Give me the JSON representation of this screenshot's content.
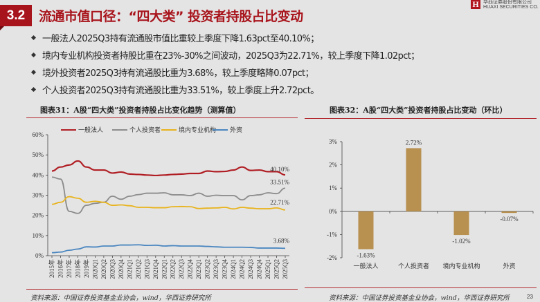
{
  "header": {
    "section_number": "3.2",
    "title": "流通市值口径：“四大类” 投资者持股占比变动",
    "logo_text_cn": "华西证券股份有限公司",
    "logo_text_en": "HUAXI SECURITIES CO.",
    "logo_mark": "H"
  },
  "bullets": [
    "一般法人2025Q3持有流通股市值比重较上季度下降1.63pct至40.10%；",
    "境内专业机构投资者持股比重在23%-30%之间波动，2025Q3为22.71%，较上季度下降1.02pct；",
    "境外投资者2025Q3持有流通股比重为3.68%，较上季度略降0.07pct；",
    "个人投资者2025Q3持有流通股比重为33.51%，较上季度上升2.72pct。"
  ],
  "colors": {
    "accent": "#a8141c",
    "general_legal": "#b01e24",
    "individual": "#8c8c8c",
    "domestic_inst": "#e8b31c",
    "foreign": "#4a86c0",
    "bar": "#b8904f"
  },
  "chart_data": [
    {
      "type": "line",
      "title": "图表31：A股“四大类”投资者持股占比变化趋势（测算值）",
      "source": "资料来源：中国证券投资基金业协会，wind，华西证券研究所",
      "ylim": [
        0,
        60
      ],
      "yticks": [
        "0%",
        "10%",
        "20%",
        "30%",
        "40%",
        "50%",
        "60%"
      ],
      "categories": [
        "2015年",
        "2016年",
        "2017年",
        "2018年",
        "2019年",
        "2020Q1",
        "2020Q2",
        "2020Q3",
        "2020Q4",
        "2021Q1",
        "2021Q2",
        "2021Q3",
        "2021Q4",
        "2022Q1",
        "2022Q2",
        "2022Q3",
        "2022Q4",
        "2023Q1",
        "2023Q2",
        "2023Q3",
        "2023Q4",
        "2024Q1",
        "2024Q2",
        "2024Q3",
        "2024Q4",
        "2025Q1",
        "2025Q2",
        "2025Q3"
      ],
      "legend_position": "top",
      "series": [
        {
          "name": "一般法人",
          "color": "#b01e24",
          "end_label": "40.10%",
          "values": [
            42,
            44,
            45,
            47,
            44,
            42.5,
            42.5,
            41,
            41.5,
            40.5,
            40.3,
            40,
            39.8,
            40,
            40.3,
            40.5,
            40.8,
            40.8,
            42,
            41.7,
            41.8,
            42.5,
            44,
            42.3,
            42.5,
            41.7,
            41.7,
            40.1
          ]
        },
        {
          "name": "个人投资者",
          "color": "#8c8c8c",
          "end_label": "33.51%",
          "values": [
            39,
            38,
            22,
            21,
            25,
            26,
            26.5,
            29.5,
            28,
            29.5,
            30.3,
            31,
            31,
            31.2,
            30.2,
            30.2,
            29.8,
            31,
            29.5,
            30,
            29.8,
            29.8,
            27.7,
            29.8,
            30.2,
            31.2,
            30.8,
            33.51
          ]
        },
        {
          "name": "境内专业机构",
          "color": "#e8b31c",
          "end_label": "22.71%",
          "values": [
            25.5,
            26.5,
            29.3,
            28.5,
            26.5,
            27,
            26.5,
            25,
            25.2,
            24.8,
            24,
            24,
            23.8,
            23.8,
            24.3,
            24.4,
            24.3,
            23.4,
            23.6,
            23.7,
            24,
            23.2,
            24,
            23.6,
            23.3,
            23.3,
            23.7,
            22.71
          ]
        },
        {
          "name": "外资",
          "color": "#4a86c0",
          "end_label": "3.68%",
          "values": [
            1.5,
            1.8,
            2.7,
            3.3,
            4.4,
            4.3,
            4.8,
            4.8,
            5.3,
            5.3,
            5.4,
            5.1,
            5.2,
            4.8,
            5,
            4.8,
            4.8,
            4.8,
            4.6,
            4.4,
            4.2,
            4.2,
            4.2,
            4.1,
            3.8,
            3.8,
            3.8,
            3.68
          ]
        }
      ]
    },
    {
      "type": "bar",
      "title": "图表32：A股“四大类”投资者持股占比变动（环比）",
      "source": "资料来源：中国证券投资基金业协会，wind，华西证券研究所",
      "ylim": [
        -2,
        3
      ],
      "yticks": [
        "-2%",
        "-1%",
        "0%",
        "1%",
        "2%",
        "3%"
      ],
      "categories": [
        "一般法人",
        "个人投资者",
        "境内专业机构",
        "外资"
      ],
      "values": [
        -1.63,
        2.72,
        -1.02,
        -0.07
      ],
      "labels": [
        "-1.63%",
        "2.72%",
        "-1.02%",
        "-0.07%"
      ]
    }
  ],
  "page_number": "23"
}
